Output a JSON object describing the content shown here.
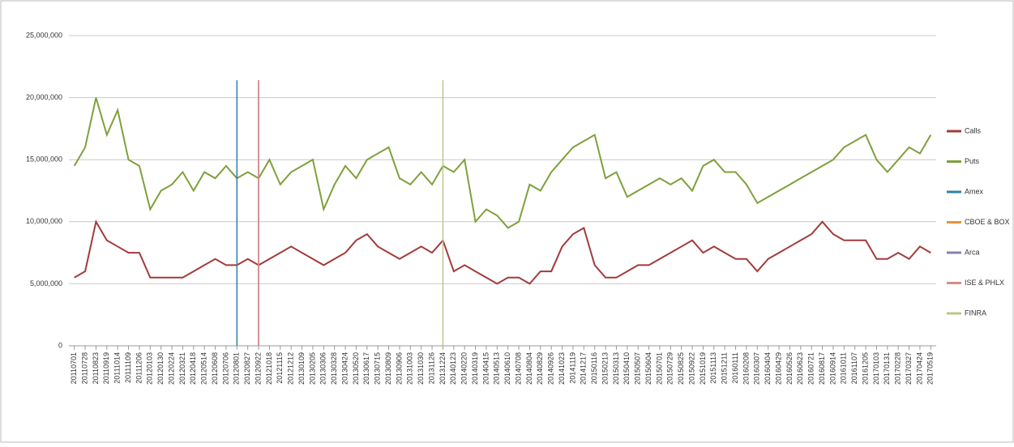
{
  "chart_data": {
    "type": "line",
    "categories": [
      "20110701",
      "20110728",
      "20110823",
      "20110919",
      "20111014",
      "20111109",
      "20111206",
      "20120103",
      "20120130",
      "20120224",
      "20120321",
      "20120418",
      "20120514",
      "20120608",
      "20120706",
      "20120801",
      "20120827",
      "20120922",
      "20121018",
      "20121115",
      "20121212",
      "20130109",
      "20130205",
      "20130306",
      "20130328",
      "20130424",
      "20130520",
      "20130617",
      "20130715",
      "20130809",
      "20130906",
      "20131003",
      "20131030",
      "20131126",
      "20131224",
      "20140123",
      "20140220",
      "20140319",
      "20140415",
      "20140513",
      "20140610",
      "20140708",
      "20140804",
      "20140829",
      "20140926",
      "20141023",
      "20141119",
      "20141217",
      "20150116",
      "20150213",
      "20150313",
      "20150410",
      "20150507",
      "20150604",
      "20150701",
      "20150729",
      "20150825",
      "20150922",
      "20151019",
      "20151113",
      "20151211",
      "20160111",
      "20160208",
      "20160307",
      "20160404",
      "20160429",
      "20160526",
      "20160623",
      "20160721",
      "20160817",
      "20160914",
      "20161011",
      "20161107",
      "20161205",
      "20170103",
      "20170131",
      "20170228",
      "20170327",
      "20170424",
      "20170519"
    ],
    "series": [
      {
        "name": "Calls",
        "color": "#a33a3a",
        "values": [
          5500000,
          6000000,
          10000000,
          8500000,
          8000000,
          7500000,
          7500000,
          5500000,
          5500000,
          5500000,
          5500000,
          6000000,
          6500000,
          7000000,
          6500000,
          6500000,
          7000000,
          6500000,
          7000000,
          7500000,
          8000000,
          7500000,
          7000000,
          6500000,
          7000000,
          7500000,
          8500000,
          9000000,
          8000000,
          7500000,
          7000000,
          7500000,
          8000000,
          7500000,
          8500000,
          6000000,
          6500000,
          6000000,
          5500000,
          5000000,
          5500000,
          5500000,
          5000000,
          6000000,
          6000000,
          8000000,
          9000000,
          9500000,
          6500000,
          5500000,
          5500000,
          6000000,
          6500000,
          6500000,
          7000000,
          7500000,
          8000000,
          8500000,
          7500000,
          8000000,
          7500000,
          7000000,
          7000000,
          6000000,
          7000000,
          7500000,
          8000000,
          8500000,
          9000000,
          10000000,
          9000000,
          8500000,
          8500000,
          8500000,
          7000000,
          7000000,
          7500000,
          7000000,
          8000000,
          7500000
        ]
      },
      {
        "name": "Puts",
        "color": "#7fa03c",
        "values": [
          14500000,
          16000000,
          20000000,
          17000000,
          19000000,
          15000000,
          14500000,
          11000000,
          12500000,
          13000000,
          14000000,
          12500000,
          14000000,
          13500000,
          14500000,
          13500000,
          14000000,
          13500000,
          15000000,
          13000000,
          14000000,
          14500000,
          15000000,
          11000000,
          13000000,
          14500000,
          13500000,
          15000000,
          15500000,
          16000000,
          13500000,
          13000000,
          14000000,
          13000000,
          14500000,
          14000000,
          15000000,
          10000000,
          11000000,
          10500000,
          9500000,
          10000000,
          13000000,
          12500000,
          14000000,
          15000000,
          16000000,
          16500000,
          17000000,
          13500000,
          14000000,
          12000000,
          12500000,
          13000000,
          13500000,
          13000000,
          13500000,
          12500000,
          14500000,
          15000000,
          14000000,
          14000000,
          13000000,
          11500000,
          12000000,
          12500000,
          13000000,
          13500000,
          14000000,
          14500000,
          15000000,
          16000000,
          16500000,
          17000000,
          15000000,
          14000000,
          15000000,
          16000000,
          15500000,
          17000000
        ]
      }
    ],
    "events": [
      {
        "name": "Amex",
        "color": "#2f7fa8",
        "x": "20120801",
        "top": 21400000
      },
      {
        "name": "CBOE & BOX",
        "color": "#e8923a",
        "x": "20120922",
        "top": 21400000
      },
      {
        "name": "Arca",
        "color": "#8a7fb0",
        "x": "20120922",
        "top": 21400000
      },
      {
        "name": "ISE & PHLX",
        "color": "#d98a8a",
        "x": "20120922",
        "top": 21400000
      },
      {
        "name": "FINRA",
        "color": "#b8c98a",
        "x": "20131224",
        "top": 21400000
      }
    ],
    "ylim": [
      0,
      25000000
    ],
    "yticks": [
      0,
      {
        "value": 5000000,
        "label": "5,000,000"
      },
      {
        "value": 10000000,
        "label": "10,000,000"
      },
      {
        "value": 15000000,
        "label": "15,000,000"
      },
      {
        "value": 20000000,
        "label": "20,000,000"
      },
      {
        "value": 25000000,
        "label": "25,000,000"
      }
    ],
    "grid": true,
    "legend": "right"
  }
}
